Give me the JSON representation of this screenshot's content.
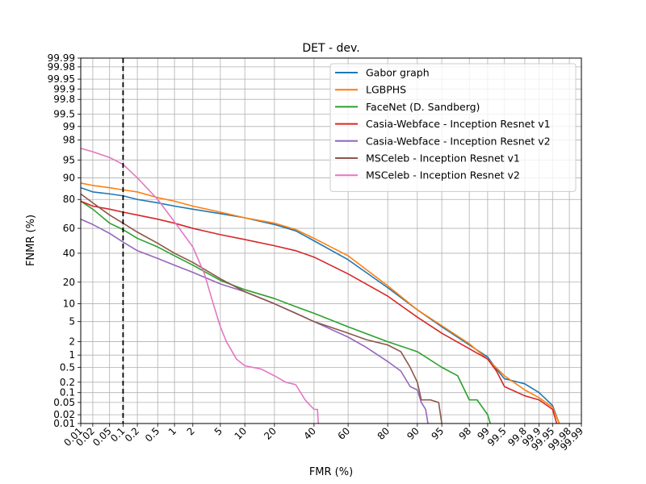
{
  "chart_data": {
    "type": "line",
    "title": "DET - dev.",
    "xlabel": "FMR (%)",
    "ylabel": "FNMR (%)",
    "scale": "probit (normal deviate)",
    "xlim": [
      0.01,
      99.99
    ],
    "ylim": [
      0.01,
      99.99
    ],
    "x_ticks": [
      "0.01",
      "0.02",
      "0.05",
      "0.1",
      "0.2",
      "0.5",
      "1",
      "2",
      "5",
      "10",
      "20",
      "40",
      "60",
      "80",
      "90",
      "95",
      "98",
      "99",
      "99.5",
      "99.8",
      "99.9",
      "99.95",
      "99.98",
      "99.99"
    ],
    "y_ticks": [
      "0.01",
      "0.02",
      "0.05",
      "0.1",
      "0.2",
      "0.5",
      "1",
      "2",
      "5",
      "10",
      "20",
      "40",
      "60",
      "80",
      "90",
      "95",
      "98",
      "99",
      "99.5",
      "99.8",
      "99.9",
      "99.95",
      "99.98",
      "99.99"
    ],
    "grid": true,
    "legend": "top-right",
    "threshold_line": {
      "x": 0.1,
      "style": "dashed",
      "color": "#000000"
    },
    "series": [
      {
        "name": "Gabor graph",
        "color": "#1f77b4",
        "points": [
          [
            0.01,
            86
          ],
          [
            0.02,
            84
          ],
          [
            0.05,
            83
          ],
          [
            0.1,
            82
          ],
          [
            0.2,
            80
          ],
          [
            0.5,
            78
          ],
          [
            1,
            76
          ],
          [
            2,
            74
          ],
          [
            5,
            71
          ],
          [
            10,
            68
          ],
          [
            20,
            63
          ],
          [
            30,
            58
          ],
          [
            40,
            50
          ],
          [
            60,
            35
          ],
          [
            80,
            17
          ],
          [
            90,
            8
          ],
          [
            95,
            4
          ],
          [
            98,
            1.7
          ],
          [
            99,
            0.9
          ],
          [
            99.3,
            0.45
          ],
          [
            99.5,
            0.25
          ],
          [
            99.8,
            0.18
          ],
          [
            99.9,
            0.1
          ],
          [
            99.95,
            0.04
          ],
          [
            99.965,
            0.01
          ]
        ]
      },
      {
        "name": "LGBPHS",
        "color": "#ff7f0e",
        "points": [
          [
            0.01,
            88
          ],
          [
            0.02,
            87
          ],
          [
            0.05,
            86
          ],
          [
            0.1,
            85
          ],
          [
            0.2,
            84
          ],
          [
            0.5,
            81
          ],
          [
            1,
            79
          ],
          [
            2,
            76
          ],
          [
            5,
            72
          ],
          [
            10,
            68
          ],
          [
            20,
            64
          ],
          [
            30,
            59
          ],
          [
            40,
            52
          ],
          [
            60,
            38
          ],
          [
            80,
            18
          ],
          [
            90,
            8
          ],
          [
            95,
            4.2
          ],
          [
            98,
            1.8
          ],
          [
            99,
            0.8
          ],
          [
            99.5,
            0.3
          ],
          [
            99.8,
            0.12
          ],
          [
            99.9,
            0.07
          ],
          [
            99.95,
            0.035
          ],
          [
            99.965,
            0.01
          ]
        ]
      },
      {
        "name": "FaceNet (D. Sandberg)",
        "color": "#2ca02c",
        "points": [
          [
            0.01,
            79
          ],
          [
            0.02,
            74
          ],
          [
            0.05,
            64
          ],
          [
            0.1,
            59
          ],
          [
            0.2,
            52
          ],
          [
            0.5,
            45
          ],
          [
            1,
            38
          ],
          [
            2,
            31
          ],
          [
            5,
            21
          ],
          [
            10,
            16
          ],
          [
            20,
            12
          ],
          [
            30,
            9
          ],
          [
            40,
            7
          ],
          [
            60,
            4
          ],
          [
            80,
            2
          ],
          [
            90,
            1.2
          ],
          [
            95,
            0.5
          ],
          [
            97,
            0.3
          ],
          [
            98,
            0.06
          ],
          [
            98.5,
            0.06
          ],
          [
            99,
            0.02
          ],
          [
            99.1,
            0.01
          ]
        ]
      },
      {
        "name": "Casia-Webface - Inception Resnet v1",
        "color": "#d62728",
        "points": [
          [
            0.01,
            79
          ],
          [
            0.02,
            76
          ],
          [
            0.05,
            74
          ],
          [
            0.1,
            72
          ],
          [
            0.2,
            70
          ],
          [
            0.5,
            67
          ],
          [
            1,
            64
          ],
          [
            2,
            60
          ],
          [
            5,
            55
          ],
          [
            10,
            51
          ],
          [
            20,
            46
          ],
          [
            30,
            42
          ],
          [
            40,
            37
          ],
          [
            60,
            25
          ],
          [
            80,
            13
          ],
          [
            90,
            6
          ],
          [
            95,
            3
          ],
          [
            98,
            1.4
          ],
          [
            99,
            0.8
          ],
          [
            99.3,
            0.4
          ],
          [
            99.5,
            0.15
          ],
          [
            99.8,
            0.08
          ],
          [
            99.9,
            0.06
          ],
          [
            99.95,
            0.03
          ],
          [
            99.96,
            0.01
          ]
        ]
      },
      {
        "name": "Casia-Webface - Inception Resnet v2",
        "color": "#9467bd",
        "points": [
          [
            0.01,
            67
          ],
          [
            0.02,
            63
          ],
          [
            0.05,
            56
          ],
          [
            0.1,
            49
          ],
          [
            0.2,
            42
          ],
          [
            0.5,
            36
          ],
          [
            1,
            31
          ],
          [
            2,
            26
          ],
          [
            5,
            19
          ],
          [
            10,
            15
          ],
          [
            20,
            10
          ],
          [
            30,
            7
          ],
          [
            40,
            5
          ],
          [
            60,
            2.5
          ],
          [
            70,
            1.5
          ],
          [
            80,
            0.7
          ],
          [
            85,
            0.4
          ],
          [
            88,
            0.15
          ],
          [
            90,
            0.12
          ],
          [
            91,
            0.05
          ],
          [
            92,
            0.03
          ],
          [
            92.5,
            0.01
          ]
        ]
      },
      {
        "name": "MSCeleb - Inception Resnet v1",
        "color": "#8c564b",
        "points": [
          [
            0.01,
            83
          ],
          [
            0.02,
            78
          ],
          [
            0.05,
            70
          ],
          [
            0.1,
            64
          ],
          [
            0.2,
            57
          ],
          [
            0.5,
            48
          ],
          [
            1,
            40
          ],
          [
            2,
            33
          ],
          [
            5,
            22
          ],
          [
            10,
            15
          ],
          [
            20,
            10
          ],
          [
            30,
            7
          ],
          [
            40,
            5
          ],
          [
            60,
            3
          ],
          [
            70,
            2.2
          ],
          [
            80,
            1.7
          ],
          [
            85,
            1.2
          ],
          [
            88,
            0.5
          ],
          [
            90,
            0.2
          ],
          [
            91,
            0.06
          ],
          [
            93,
            0.06
          ],
          [
            94.5,
            0.05
          ],
          [
            95,
            0.01
          ]
        ]
      },
      {
        "name": "MSCeleb - Inception Resnet v2",
        "color": "#e377c2",
        "points": [
          [
            0.01,
            97
          ],
          [
            0.02,
            96.5
          ],
          [
            0.05,
            95.5
          ],
          [
            0.1,
            94
          ],
          [
            0.2,
            90
          ],
          [
            0.5,
            80
          ],
          [
            1,
            65
          ],
          [
            2,
            45
          ],
          [
            3,
            25
          ],
          [
            4,
            10
          ],
          [
            5,
            4
          ],
          [
            6,
            2
          ],
          [
            8,
            0.8
          ],
          [
            10,
            0.55
          ],
          [
            15,
            0.45
          ],
          [
            20,
            0.3
          ],
          [
            25,
            0.2
          ],
          [
            30,
            0.17
          ],
          [
            35,
            0.06
          ],
          [
            40,
            0.03
          ],
          [
            42,
            0.03
          ],
          [
            42.5,
            0.01
          ]
        ]
      }
    ]
  }
}
